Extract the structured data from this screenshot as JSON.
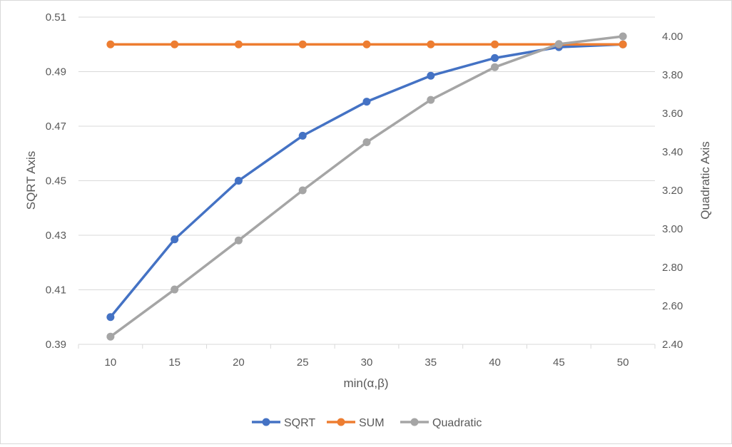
{
  "chart_data": {
    "type": "line",
    "xlabel": "min(α,β)",
    "categories": [
      "10",
      "15",
      "20",
      "25",
      "30",
      "35",
      "40",
      "45",
      "50"
    ],
    "y_left": {
      "label": "SQRT Axis",
      "range": [
        0.39,
        0.51
      ],
      "ticks": [
        "0.39",
        "0.41",
        "0.43",
        "0.45",
        "0.47",
        "0.49",
        "0.51"
      ]
    },
    "y_right": {
      "label": "Quadratic Axis",
      "range": [
        2.4,
        4.1
      ],
      "ticks": [
        "2.40",
        "2.60",
        "2.80",
        "3.00",
        "3.20",
        "3.40",
        "3.60",
        "3.80",
        "4.00"
      ]
    },
    "grid": true,
    "legend_position": "bottom",
    "series": [
      {
        "name": "SQRT",
        "axis": "left",
        "color": "#4472C4",
        "values": [
          0.4,
          0.4285,
          0.45,
          0.4665,
          0.479,
          0.4885,
          0.495,
          0.499,
          0.5
        ]
      },
      {
        "name": "SUM",
        "axis": "left",
        "color": "#ED7D31",
        "values": [
          0.5,
          0.5,
          0.5,
          0.5,
          0.5,
          0.5,
          0.5,
          0.5,
          0.5
        ]
      },
      {
        "name": "Quadratic",
        "axis": "right",
        "color": "#A5A5A5",
        "values": [
          2.44,
          2.685,
          2.94,
          3.2,
          3.45,
          3.67,
          3.84,
          3.96,
          4.0
        ]
      }
    ]
  }
}
